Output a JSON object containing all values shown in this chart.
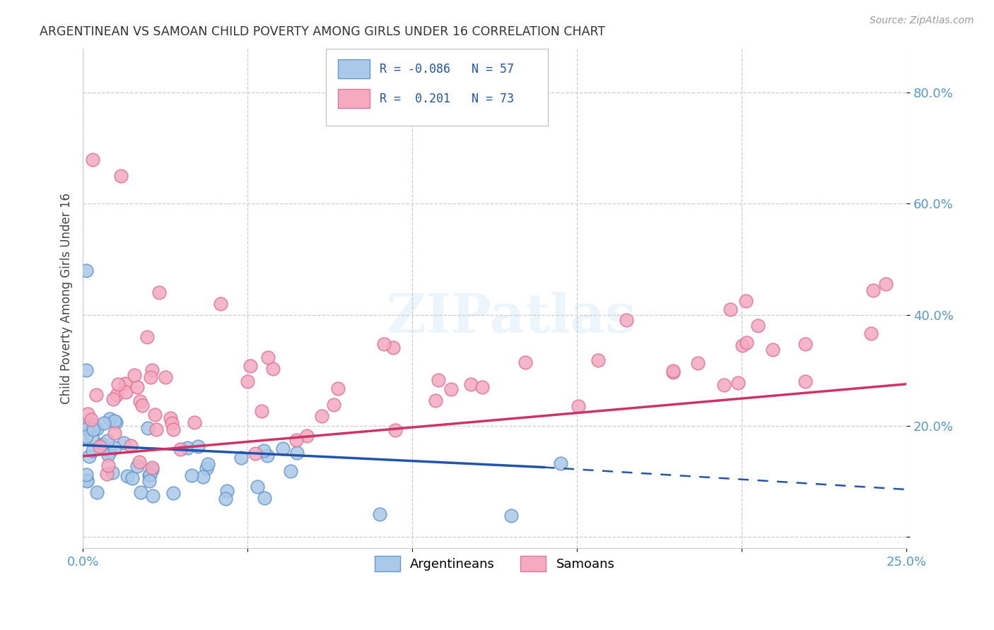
{
  "title": "ARGENTINEAN VS SAMOAN CHILD POVERTY AMONG GIRLS UNDER 16 CORRELATION CHART",
  "source": "Source: ZipAtlas.com",
  "ylabel": "Child Poverty Among Girls Under 16",
  "y_ticks": [
    0.0,
    0.2,
    0.4,
    0.6,
    0.8
  ],
  "y_tick_labels": [
    "",
    "20.0%",
    "40.0%",
    "60.0%",
    "80.0%"
  ],
  "xlim": [
    0.0,
    0.25
  ],
  "ylim": [
    -0.02,
    0.88
  ],
  "watermark_text": "ZIPatlas",
  "argentinean_color": "#aac8e8",
  "samoan_color": "#f5aac0",
  "argentinean_edge_color": "#6699cc",
  "samoan_edge_color": "#dd7799",
  "argentinean_line_color": "#2255aa",
  "samoan_line_color": "#cc3366",
  "background_color": "#ffffff",
  "grid_color": "#cccccc",
  "title_color": "#333333",
  "source_color": "#999999",
  "axis_label_color": "#5599cc",
  "legend_r1": "R = -0.086",
  "legend_n1": "N = 57",
  "legend_r2": "R =  0.201",
  "legend_n2": "N = 73"
}
